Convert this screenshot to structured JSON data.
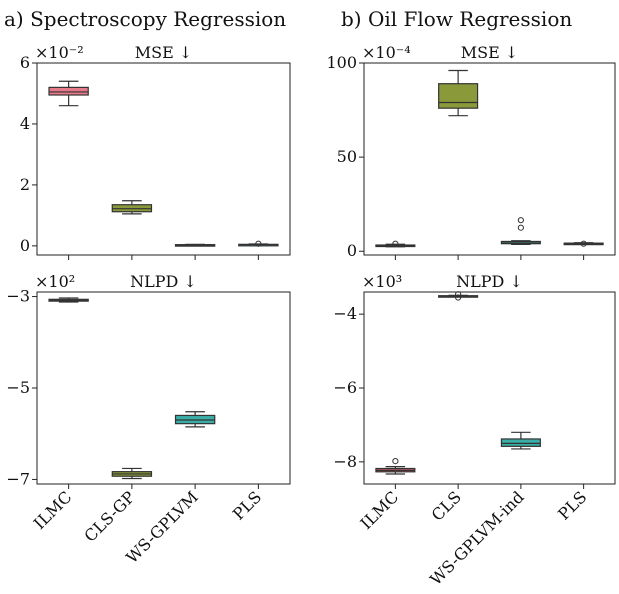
{
  "panel_titles": [
    "a) Spectroscopy Regression",
    "b) Oil Flow Regression"
  ],
  "chart_data": [
    {
      "type": "box",
      "title": "MSE ↓",
      "multiplier": "×10⁻²",
      "categories": [
        "ILMC",
        "CLS-GP",
        "WS-GPLVM",
        "PLS"
      ],
      "yticks": [
        "0",
        "2",
        "4",
        "6"
      ],
      "ytick_values": [
        0,
        2,
        4,
        6
      ],
      "ylim": [
        -0.3,
        6
      ],
      "boxes": [
        {
          "min": 4.6,
          "q1": 4.95,
          "median": 5.05,
          "q3": 5.2,
          "max": 5.4,
          "outliers": [],
          "color": "#e67a8a"
        },
        {
          "min": 1.05,
          "q1": 1.12,
          "median": 1.22,
          "q3": 1.35,
          "max": 1.48,
          "outliers": [],
          "color": "#8a9a3a"
        },
        {
          "min": 0.01,
          "q1": 0.02,
          "median": 0.03,
          "q3": 0.04,
          "max": 0.05,
          "outliers": [],
          "color": "#3aada6"
        },
        {
          "min": 0.01,
          "q1": 0.03,
          "median": 0.04,
          "q3": 0.05,
          "max": 0.06,
          "outliers": [
            0.07
          ],
          "color": "#3ba8c9"
        }
      ]
    },
    {
      "type": "box",
      "title": "MSE ↓",
      "multiplier": "×10⁻⁴",
      "categories": [
        "ILMC",
        "CLS",
        "WS-GPLVM-ind",
        "PLS"
      ],
      "yticks": [
        "0",
        "50",
        "100"
      ],
      "ytick_values": [
        0,
        50,
        100
      ],
      "ylim": [
        -2,
        100
      ],
      "boxes": [
        {
          "min": 2.4,
          "q1": 2.8,
          "median": 3.0,
          "q3": 3.3,
          "max": 3.7,
          "outliers": [
            4.0
          ],
          "color": "#dc7d8c"
        },
        {
          "min": 72,
          "q1": 76,
          "median": 79,
          "q3": 89,
          "max": 96,
          "outliers": [],
          "color": "#8a9a3a"
        },
        {
          "min": 3.6,
          "q1": 4.0,
          "median": 4.4,
          "q3": 5.2,
          "max": 5.6,
          "outliers": [
            12.5,
            16.5
          ],
          "color": "#3aada6"
        },
        {
          "min": 3.7,
          "q1": 3.9,
          "median": 4.1,
          "q3": 4.3,
          "max": 4.5,
          "outliers": [
            4.0
          ],
          "color": "#4a84b5"
        }
      ]
    },
    {
      "type": "box",
      "title": "NLPD ↓",
      "multiplier": "×10²",
      "categories": [
        "ILMC",
        "CLS-GP",
        "WS-GPLVM",
        "PLS"
      ],
      "yticks": [
        "−3",
        "−5",
        "−7"
      ],
      "ytick_values": [
        -3,
        -5,
        -7
      ],
      "ylim": [
        -7.1,
        -2.9
      ],
      "boxes": [
        {
          "min": -3.12,
          "q1": -3.1,
          "median": -3.08,
          "q3": -3.06,
          "max": -3.03,
          "outliers": [],
          "color": "#c57a78"
        },
        {
          "min": -6.98,
          "q1": -6.93,
          "median": -6.88,
          "q3": -6.83,
          "max": -6.76,
          "outliers": [],
          "color": "#8a9a3a"
        },
        {
          "min": -5.85,
          "q1": -5.78,
          "median": -5.7,
          "q3": -5.6,
          "max": -5.52,
          "outliers": [],
          "color": "#3aada6"
        },
        {
          "min": null,
          "q1": null,
          "median": null,
          "q3": null,
          "max": null,
          "outliers": [],
          "color": "#ffffff"
        }
      ]
    },
    {
      "type": "box",
      "title": "NLPD ↓",
      "multiplier": "×10³",
      "categories": [
        "ILMC",
        "CLS",
        "WS-GPLVM-ind",
        "PLS"
      ],
      "yticks": [
        "−4",
        "−6",
        "−8"
      ],
      "ytick_values": [
        -4,
        -6,
        -8
      ],
      "ylim": [
        -8.6,
        -3.4
      ],
      "boxes": [
        {
          "min": -8.33,
          "q1": -8.27,
          "median": -8.23,
          "q3": -8.18,
          "max": -8.13,
          "outliers": [
            -7.98
          ],
          "color": "#c9606b"
        },
        {
          "min": -3.52,
          "q1": -3.52,
          "median": -3.51,
          "q3": -3.5,
          "max": -3.49,
          "outliers": [
            -3.46,
            -3.55
          ],
          "color": "#8a9a3a"
        },
        {
          "min": -7.65,
          "q1": -7.58,
          "median": -7.5,
          "q3": -7.38,
          "max": -7.2,
          "outliers": [],
          "color": "#3aada6"
        },
        {
          "min": null,
          "q1": null,
          "median": null,
          "q3": null,
          "max": null,
          "outliers": [],
          "color": "#ffffff"
        }
      ]
    }
  ]
}
